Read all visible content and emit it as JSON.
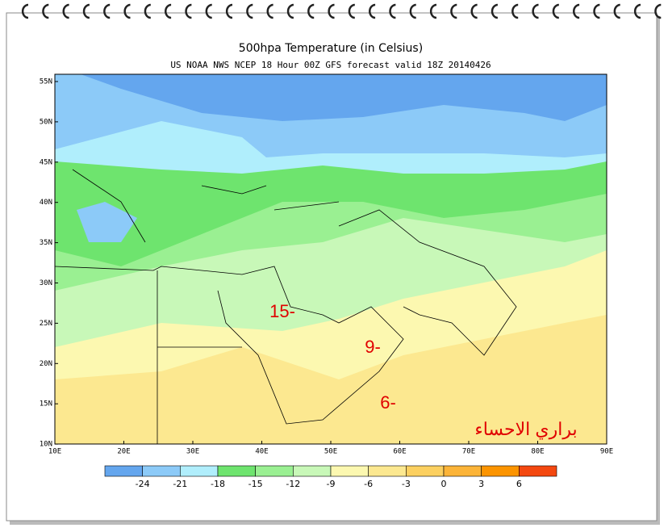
{
  "title": "500hpa  Temperature (in Celsius)",
  "subtitle": "US NOAA NWS NCEP 18 Hour 00Z GFS forecast valid 18Z 20140426",
  "latitude_labels": [
    "55N",
    "50N",
    "45N",
    "40N",
    "35N",
    "30N",
    "25N",
    "20N",
    "15N",
    "10N"
  ],
  "longitude_labels": [
    "10E",
    "20E",
    "30E",
    "40E",
    "50E",
    "60E",
    "70E",
    "80E",
    "90E"
  ],
  "colorbar": {
    "colors": [
      "#64a6ee",
      "#8ccaf8",
      "#b0eefc",
      "#6ee46e",
      "#9af092",
      "#c8f8b8",
      "#fcf8b0",
      "#fce890",
      "#fcd060",
      "#fcb438",
      "#fc9400",
      "#f44810"
    ],
    "labels": [
      -24,
      -21,
      -18,
      -15,
      -12,
      -9,
      -6,
      -3,
      0,
      3,
      6
    ]
  },
  "annotations": [
    "15-",
    "9-",
    "6-",
    "براري الاحساء"
  ]
}
